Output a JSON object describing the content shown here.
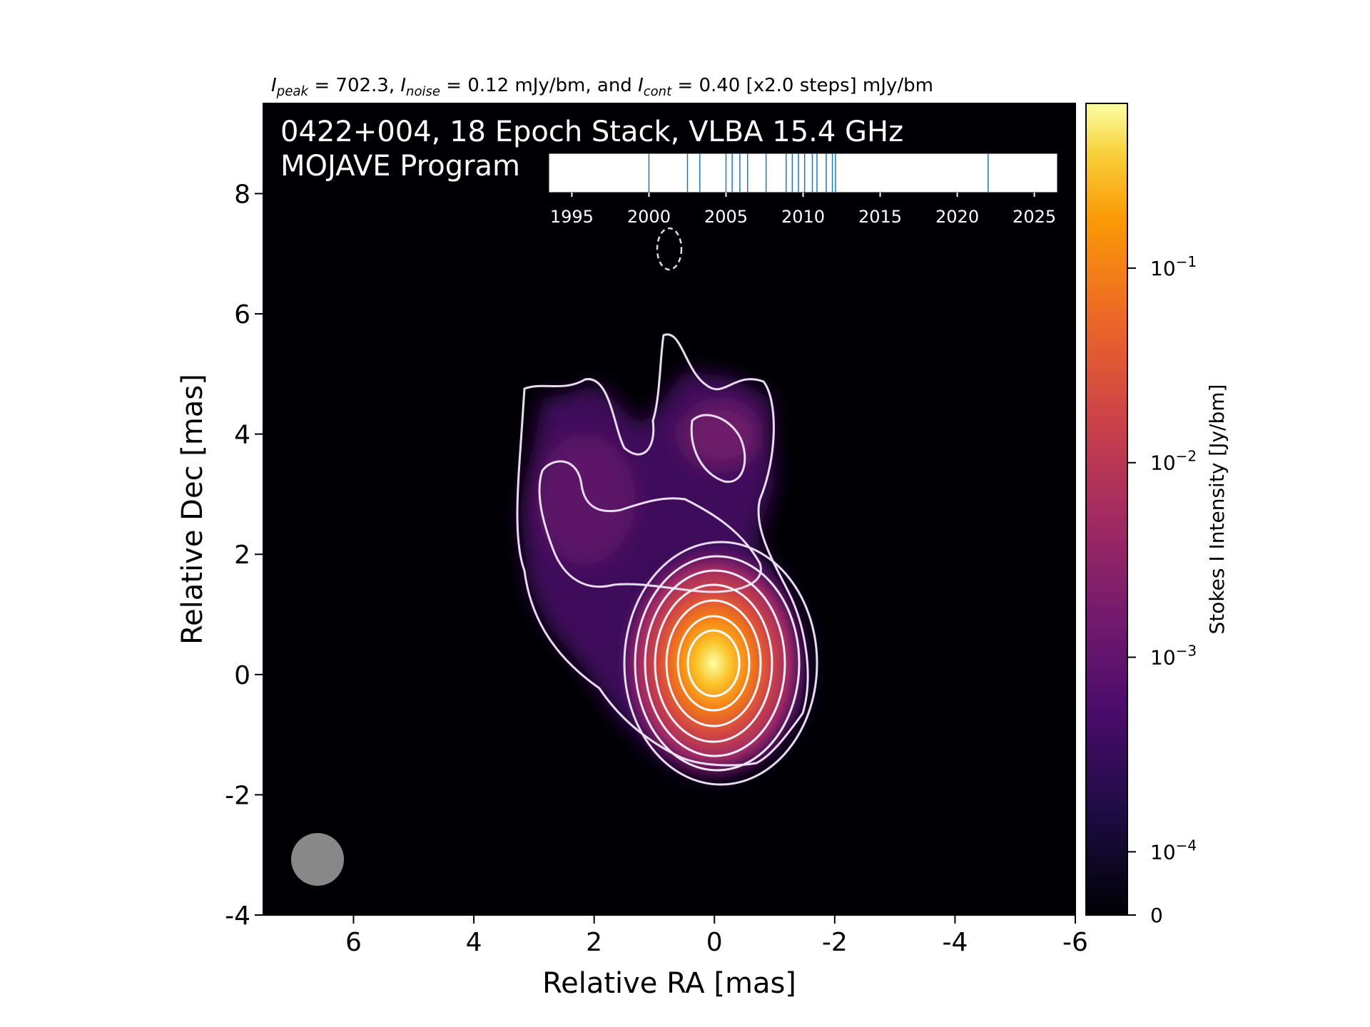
{
  "header": {
    "i_peak_label": "I",
    "i_peak_sub": "peak",
    "i_peak_value": " = 702.3, ",
    "i_noise_label": "I",
    "i_noise_sub": "noise",
    "i_noise_value": " = 0.12 mJy/bm, and ",
    "i_cont_label": "I",
    "i_cont_sub": "cont",
    "i_cont_value": " = 0.40 [x2.0 steps] mJy/bm"
  },
  "image_title": {
    "line1": "0422+004, 18 Epoch Stack, VLBA 15.4 GHz",
    "line2": "MOJAVE Program"
  },
  "colors": {
    "background": "#000004",
    "contour": "#e8dcf0",
    "epoch_tick": "#1f77b4",
    "beam": "#888888"
  },
  "chart_data": {
    "type": "heatmap",
    "title": "0422+004, 18 Epoch Stack, VLBA 15.4 GHz",
    "subtitle": "MOJAVE Program",
    "xlabel": "Relative RA [mas]",
    "ylabel": "Relative Dec [mas]",
    "xlim": [
      7.5,
      -6
    ],
    "ylim": [
      -4,
      9.5
    ],
    "x_ticks": [
      6,
      4,
      2,
      0,
      -2,
      -4,
      -6
    ],
    "x_tick_labels": [
      "6",
      "4",
      "2",
      "0",
      "-2",
      "-4",
      "-6"
    ],
    "y_ticks": [
      -4,
      -2,
      0,
      2,
      4,
      6,
      8
    ],
    "y_tick_labels": [
      "-4",
      "-2",
      "0",
      "2",
      "4",
      "6",
      "8"
    ],
    "colormap": "inferno",
    "colorbar": {
      "label": "Stokes I Intensity [Jy/bm]",
      "scale": "log",
      "ticks": [
        {
          "base": "10",
          "exp": "−1",
          "value": 0.1
        },
        {
          "base": "10",
          "exp": "−2",
          "value": 0.01
        },
        {
          "base": "10",
          "exp": "−3",
          "value": 0.001
        },
        {
          "base": "10",
          "exp": "−4",
          "value": 0.0001
        },
        {
          "base": "0",
          "exp": "",
          "value": 0
        }
      ]
    },
    "peak_position_mas": [
      0,
      0
    ],
    "peak_jy_per_beam": 0.7023,
    "contour_levels_mjy": [
      0.4,
      0.8,
      1.6,
      3.2,
      6.4,
      12.8,
      25.6,
      51.2,
      102.4,
      204.8,
      409.6
    ],
    "beam": {
      "x_mas": 6.6,
      "y_mas": -3.2,
      "diameter_mas": 0.9
    },
    "epoch_timeline": {
      "xlim": [
        1993.5,
        2026.5
      ],
      "ticks": [
        1995,
        2000,
        2005,
        2010,
        2015,
        2020,
        2025
      ],
      "tick_labels": [
        "1995",
        "2000",
        "2005",
        "2010",
        "2015",
        "2020",
        "2025"
      ],
      "epochs": [
        2000.0,
        2002.5,
        2003.3,
        2005.0,
        2005.4,
        2005.9,
        2006.4,
        2007.6,
        2008.9,
        2009.3,
        2009.7,
        2010.1,
        2010.6,
        2010.9,
        2011.5,
        2011.9,
        2012.1,
        2022.0
      ]
    }
  }
}
